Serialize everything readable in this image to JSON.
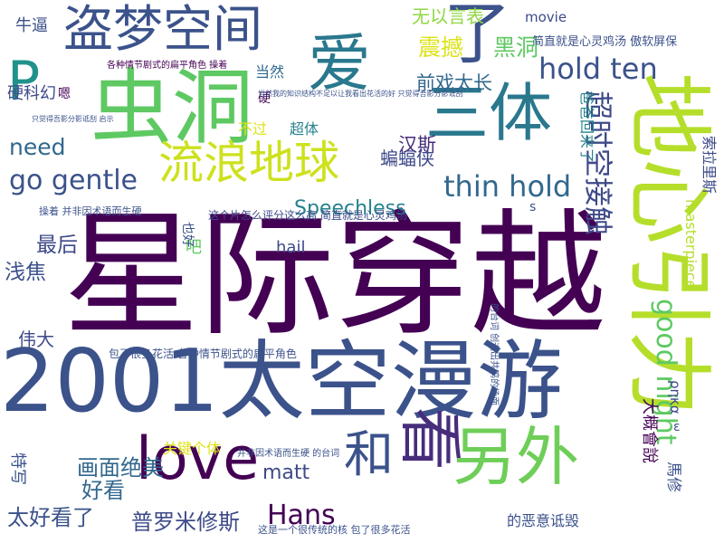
{
  "words": [
    {
      "text": "星际穿越",
      "color": "#440154",
      "weight": 1.0
    },
    {
      "text": "2001太空漫游",
      "color": "#3b528b",
      "weight": 0.78
    },
    {
      "text": "地心引力",
      "color": "#b5de2b",
      "weight": 0.62,
      "vertical": true
    },
    {
      "text": "爱",
      "color": "#2a788e",
      "weight": 0.5
    },
    {
      "text": "三体",
      "color": "#2a788e",
      "weight": 0.5
    },
    {
      "text": "了",
      "color": "#3b528b",
      "weight": 0.55
    },
    {
      "text": "虫洞",
      "color": "#5ec962",
      "weight": 0.6
    },
    {
      "text": "P",
      "color": "#21918c",
      "weight": 0.55
    },
    {
      "text": "盗梦空间",
      "color": "#3b528b",
      "weight": 0.42
    },
    {
      "text": "love",
      "color": "#440154",
      "weight": 0.45
    },
    {
      "text": "看",
      "color": "#472d7b",
      "weight": 0.45,
      "vertical": true
    },
    {
      "text": "另外",
      "color": "#6ece58",
      "weight": 0.42
    },
    {
      "text": "和",
      "color": "#3b528b",
      "weight": 0.35
    },
    {
      "text": "流浪地球",
      "color": "#cde11d",
      "weight": 0.32
    },
    {
      "text": "超时空接触",
      "color": "#3e4a89",
      "weight": 0.26,
      "vertical": true
    },
    {
      "text": "good night",
      "color": "#5ec962",
      "weight": 0.26,
      "vertical": true
    },
    {
      "text": "hold ten",
      "color": "#3b528b",
      "weight": 0.24
    },
    {
      "text": "thin hold",
      "color": "#31688e",
      "weight": 0.24
    },
    {
      "text": "go gentle",
      "color": "#3b528b",
      "weight": 0.22
    },
    {
      "text": "Hans",
      "color": "#440154",
      "weight": 0.22
    },
    {
      "text": "need",
      "color": "#31688e",
      "weight": 0.2
    },
    {
      "text": "画面绝美",
      "color": "#31688e",
      "weight": 0.18
    },
    {
      "text": "太好看了",
      "color": "#3b528b",
      "weight": 0.18
    },
    {
      "text": "普罗米修斯",
      "color": "#3e4a89",
      "weight": 0.18
    },
    {
      "text": "震撼",
      "color": "#dde318",
      "weight": 0.17
    },
    {
      "text": "黑洞",
      "color": "#5ec962",
      "weight": 0.16
    },
    {
      "text": "无以言表",
      "color": "#90d743",
      "weight": 0.15
    },
    {
      "text": "前戏太长",
      "color": "#31688e",
      "weight": 0.15
    },
    {
      "text": "汉斯",
      "color": "#472d7b",
      "weight": 0.15
    },
    {
      "text": "最后",
      "color": "#3e4a89",
      "weight": 0.15
    },
    {
      "text": "浅焦",
      "color": "#3b528b",
      "weight": 0.15
    },
    {
      "text": "好看",
      "color": "#31688e",
      "weight": 0.15
    },
    {
      "text": "特写",
      "color": "#3b528b",
      "weight": 0.14,
      "vertical": true
    },
    {
      "text": "蝙蝠侠",
      "color": "#3e4a89",
      "weight": 0.14
    },
    {
      "text": "大概會說",
      "color": "#440154",
      "weight": 0.13,
      "vertical": true
    },
    {
      "text": "索拉里斯",
      "color": "#3e4a89",
      "weight": 0.13,
      "vertical": true
    },
    {
      "text": "Speechless",
      "color": "#26828e",
      "weight": 0.13
    },
    {
      "text": "matt",
      "color": "#3e4a89",
      "weight": 0.13
    },
    {
      "text": "masterpiece",
      "color": "#b5de2b",
      "weight": 0.12,
      "vertical": true
    },
    {
      "text": "馬修",
      "color": "#3b528b",
      "weight": 0.13,
      "vertical": true
    },
    {
      "text": "爸爸回来了",
      "color": "#26828e",
      "weight": 0.12,
      "vertical": true
    },
    {
      "text": "吧",
      "color": "#5ec962",
      "weight": 0.13
    },
    {
      "text": "伟大",
      "color": "#3e4a89",
      "weight": 0.12
    },
    {
      "text": "当然",
      "color": "#31688e",
      "weight": 0.12
    },
    {
      "text": "硬科幻",
      "color": "#3e4a89",
      "weight": 0.12
    },
    {
      "text": "关键个体",
      "color": "#dde318",
      "weight": 0.11
    },
    {
      "text": "超体",
      "color": "#26828e",
      "weight": 0.11
    },
    {
      "text": "不过",
      "color": "#dde318",
      "weight": 0.11
    },
    {
      "text": "hail",
      "color": "#3e4a89",
      "weight": 0.11
    },
    {
      "text": "ρηκα",
      "color": "#3e4a89",
      "weight": 0.11,
      "vertical": true
    },
    {
      "text": "牛逼",
      "color": "#3b528b",
      "weight": 0.1
    },
    {
      "text": "的恶意诋毁",
      "color": "#3b528b",
      "weight": 0.1
    },
    {
      "text": "s",
      "color": "#3b528b",
      "weight": 0.1
    },
    {
      "text": "movie",
      "color": "#3e4a89",
      "weight": 0.09
    },
    {
      "text": "也好",
      "color": "#3b528b",
      "weight": 0.09,
      "vertical": true
    },
    {
      "text": "嗯",
      "color": "#440154",
      "weight": 0.09
    },
    {
      "text": "硬",
      "color": "#440154",
      "weight": 0.09
    },
    {
      "text": "ε",
      "color": "#3b528b",
      "weight": 0.09
    },
    {
      "text": "简直就是心灵鸡汤 傲软屏保",
      "color": "#3b528b",
      "weight": 0.07
    },
    {
      "text": "包了很多花活 各种情节剧式的扁平角色",
      "color": "#3b528b",
      "weight": 0.06
    },
    {
      "text": "各种情节剧式的扁平角色 操着",
      "color": "#440154",
      "weight": 0.06
    },
    {
      "text": "这个片怎么评分这么高 简直就是心灵鸡汤",
      "color": "#3e4a89",
      "weight": 0.06
    },
    {
      "text": "操着 并非因术语而生硬",
      "color": "#3b528b",
      "weight": 0.06
    },
    {
      "text": "并非因术语而生硬 的台词",
      "color": "#3b528b",
      "weight": 0.06
    },
    {
      "text": "这是一个很传统的核 包了很多花活",
      "color": "#3b528b",
      "weight": 0.06
    },
    {
      "text": "的台词 创造出共鸣的场面",
      "color": "#3b528b",
      "weight": 0.05,
      "vertical": true
    },
    {
      "text": "当然我的知识结构不足以让我看出花活的好 只觉得吾影分影诋刮",
      "color": "#3b528b",
      "weight": 0.04
    },
    {
      "text": "只觉得吾影分影诋刮 启示",
      "color": "#3b528b",
      "weight": 0.04
    }
  ]
}
